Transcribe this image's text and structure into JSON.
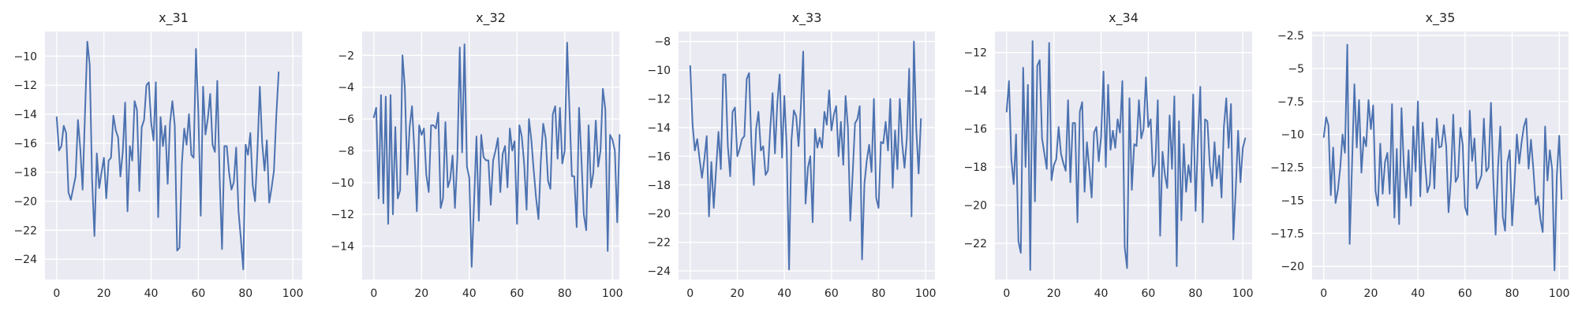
{
  "chart_data": [
    {
      "type": "line",
      "title": "x_31",
      "xlabel": "",
      "ylabel": "",
      "xlim": [
        -4.95,
        103.95
      ],
      "ylim": [
        -25.4,
        -8.3
      ],
      "xticks": [
        0,
        20,
        40,
        60,
        80,
        100
      ],
      "yticks": [
        -24,
        -22,
        -20,
        -18,
        -16,
        -14,
        -12,
        -10
      ],
      "series": [
        {
          "name": "x_31",
          "color": "#4c72b0",
          "values": [
            -14.2,
            -16.5,
            -16.2,
            -14.8,
            -15.3,
            -19.4,
            -19.9,
            -19.1,
            -18.3,
            -14.4,
            -16.4,
            -19.2,
            -14.0,
            -9.0,
            -10.6,
            -18.5,
            -22.4,
            -16.7,
            -19.1,
            -18.0,
            -17.0,
            -19.8,
            -17.2,
            -17.0,
            -14.1,
            -15.1,
            -15.6,
            -18.3,
            -16.6,
            -13.2,
            -20.7,
            -16.2,
            -17.2,
            -13.1,
            -13.7,
            -19.3,
            -14.9,
            -14.4,
            -12.0,
            -11.8,
            -14.6,
            -15.8,
            -11.8,
            -21.1,
            -14.2,
            -16.2,
            -14.8,
            -18.8,
            -14.6,
            -13.1,
            -14.8,
            -23.4,
            -23.2,
            -17.4,
            -15.0,
            -16.1,
            -14.0,
            -16.8,
            -17.0,
            -9.5,
            -13.9,
            -21.0,
            -12.1,
            -15.4,
            -14.3,
            -12.6,
            -16.1,
            -16.6,
            -11.7,
            -18.4,
            -23.3,
            -16.2,
            -16.2,
            -18.0,
            -19.2,
            -18.7,
            -16.3,
            -20.7,
            -22.6,
            -24.7,
            -16.1,
            -16.8,
            -15.3,
            -18.9,
            -20.0,
            -16.5,
            -12.1,
            -16.0,
            -17.9,
            -15.8,
            -20.1,
            -19.1,
            -17.9,
            -14.1,
            -11.1
          ]
        }
      ]
    },
    {
      "type": "line",
      "title": "x_32",
      "xlabel": "",
      "ylabel": "",
      "xlim": [
        -4.9,
        102.9
      ],
      "ylim": [
        -16.1,
        -0.5
      ],
      "xticks": [
        0,
        20,
        40,
        60,
        80,
        100
      ],
      "yticks": [
        -14,
        -12,
        -10,
        -8,
        -6,
        -4,
        -2
      ],
      "series": [
        {
          "name": "x_32",
          "color": "#4c72b0",
          "values": [
            -5.9,
            -5.3,
            -11.0,
            -4.5,
            -11.3,
            -4.6,
            -12.6,
            -4.5,
            -12.0,
            -6.5,
            -11.0,
            -10.5,
            -2.0,
            -4.0,
            -9.5,
            -6.5,
            -5.2,
            -8.0,
            -11.8,
            -6.4,
            -7.0,
            -6.6,
            -9.5,
            -10.6,
            -6.4,
            -6.4,
            -6.6,
            -5.6,
            -11.6,
            -11.0,
            -6.2,
            -10.3,
            -9.8,
            -8.3,
            -11.6,
            -8.4,
            -1.5,
            -8.1,
            -1.3,
            -9.0,
            -9.7,
            -15.3,
            -11.3,
            -7.1,
            -12.4,
            -7.0,
            -8.4,
            -8.6,
            -8.6,
            -11.4,
            -8.6,
            -8.0,
            -7.2,
            -10.6,
            -8.2,
            -7.7,
            -10.3,
            -6.6,
            -8.0,
            -7.4,
            -12.6,
            -6.4,
            -7.1,
            -8.8,
            -11.7,
            -6.0,
            -7.3,
            -9.2,
            -11.0,
            -12.3,
            -8.6,
            -6.3,
            -7.2,
            -9.9,
            -10.4,
            -5.7,
            -5.2,
            -8.5,
            -5.3,
            -8.8,
            -8.0,
            -1.2,
            -5.5,
            -9.6,
            -9.6,
            -12.8,
            -5.3,
            -8.5,
            -12.0,
            -13.0,
            -6.4,
            -10.3,
            -9.4,
            -6.1,
            -9.0,
            -8.0,
            -4.1,
            -5.4,
            -14.3,
            -7.0,
            -7.3,
            -8.0,
            -12.5,
            -7.0
          ]
        }
      ]
    },
    {
      "type": "line",
      "title": "x_33",
      "xlabel": "",
      "ylabel": "",
      "xlim": [
        -4.95,
        103.95
      ],
      "ylim": [
        -24.6,
        -7.3
      ],
      "xticks": [
        0,
        20,
        40,
        60,
        80,
        100
      ],
      "yticks": [
        -24,
        -22,
        -20,
        -18,
        -16,
        -14,
        -12,
        -10,
        -8
      ],
      "series": [
        {
          "name": "x_33",
          "color": "#4c72b0",
          "values": [
            -9.7,
            -13.8,
            -15.6,
            -14.8,
            -16.2,
            -17.5,
            -16.2,
            -14.6,
            -20.2,
            -16.4,
            -19.6,
            -16.9,
            -14.3,
            -16.9,
            -10.3,
            -10.3,
            -15.3,
            -17.4,
            -12.9,
            -12.6,
            -16.0,
            -15.5,
            -14.8,
            -14.6,
            -10.6,
            -10.2,
            -15.2,
            -18.0,
            -14.1,
            -12.9,
            -15.6,
            -15.3,
            -17.3,
            -17.0,
            -14.1,
            -11.6,
            -15.8,
            -12.3,
            -10.3,
            -16.1,
            -11.8,
            -15.4,
            -23.9,
            -14.9,
            -12.8,
            -13.2,
            -15.3,
            -12.6,
            -8.7,
            -19.3,
            -16.8,
            -16.0,
            -20.6,
            -14.1,
            -15.4,
            -14.7,
            -15.4,
            -12.9,
            -13.8,
            -11.4,
            -14.2,
            -13.1,
            -12.5,
            -16.0,
            -13.6,
            -16.6,
            -11.8,
            -14.0,
            -20.5,
            -17.2,
            -13.7,
            -13.4,
            -12.5,
            -23.2,
            -17.9,
            -16.3,
            -15.2,
            -17.1,
            -12.0,
            -18.9,
            -19.6,
            -15.0,
            -15.1,
            -13.6,
            -15.6,
            -12.0,
            -18.2,
            -14.2,
            -16.9,
            -12.0,
            -15.1,
            -16.8,
            -14.8,
            -9.9,
            -20.2,
            -8.0,
            -14.1,
            -17.2,
            -13.4
          ]
        }
      ]
    },
    {
      "type": "line",
      "title": "x_34",
      "xlabel": "",
      "ylabel": "",
      "xlim": [
        -4.95,
        103.95
      ],
      "ylim": [
        -23.9,
        -10.9
      ],
      "xticks": [
        0,
        20,
        40,
        60,
        80,
        100
      ],
      "yticks": [
        -22,
        -20,
        -18,
        -16,
        -14,
        -12
      ],
      "series": [
        {
          "name": "x_34",
          "color": "#4c72b0",
          "values": [
            -15.1,
            -13.5,
            -17.6,
            -18.9,
            -16.3,
            -21.9,
            -22.5,
            -12.8,
            -18.0,
            -13.7,
            -23.4,
            -11.4,
            -19.8,
            -12.7,
            -12.4,
            -16.5,
            -17.3,
            -18.1,
            -11.5,
            -18.7,
            -17.9,
            -17.6,
            -15.9,
            -17.3,
            -17.8,
            -18.2,
            -14.5,
            -18.8,
            -15.7,
            -15.7,
            -20.9,
            -15.1,
            -14.6,
            -19.3,
            -16.7,
            -18.1,
            -19.6,
            -16.2,
            -15.9,
            -17.7,
            -16.4,
            -13.0,
            -18.0,
            -13.7,
            -17.1,
            -16.1,
            -17.0,
            -15.5,
            -16.2,
            -13.5,
            -22.2,
            -23.3,
            -14.4,
            -19.2,
            -16.8,
            -16.9,
            -14.5,
            -16.5,
            -16.0,
            -13.3,
            -15.9,
            -15.5,
            -18.5,
            -17.8,
            -14.5,
            -21.6,
            -17.2,
            -18.4,
            -19.1,
            -15.3,
            -18.1,
            -14.3,
            -23.2,
            -15.6,
            -20.8,
            -16.8,
            -19.3,
            -17.9,
            -18.8,
            -14.2,
            -20.3,
            -16.5,
            -13.8,
            -20.9,
            -15.5,
            -15.6,
            -17.9,
            -19.0,
            -16.7,
            -18.6,
            -17.4,
            -19.6,
            -15.9,
            -14.4,
            -17.0,
            -14.7,
            -21.8,
            -19.2,
            -16.1,
            -18.8,
            -17.0,
            -16.5
          ]
        }
      ]
    },
    {
      "type": "line",
      "title": "x_35",
      "xlabel": "",
      "ylabel": "",
      "xlim": [
        -4.95,
        103.95
      ],
      "ylim": [
        -21.0,
        -2.2
      ],
      "xticks": [
        0,
        20,
        40,
        60,
        80,
        100
      ],
      "yticks": [
        -20.0,
        -17.5,
        -15.0,
        -12.5,
        -10.0,
        -7.5,
        -5.0,
        -2.5
      ],
      "series": [
        {
          "name": "x_35",
          "color": "#4c72b0",
          "values": [
            -10.2,
            -8.7,
            -9.3,
            -14.6,
            -11.0,
            -15.2,
            -14.2,
            -12.5,
            -10.0,
            -11.4,
            -3.2,
            -18.3,
            -12.3,
            -6.2,
            -11.0,
            -7.4,
            -12.9,
            -10.2,
            -10.9,
            -7.4,
            -9.6,
            -7.8,
            -14.3,
            -15.4,
            -10.7,
            -14.5,
            -12.1,
            -11.4,
            -14.5,
            -7.7,
            -16.3,
            -11.1,
            -16.8,
            -8.0,
            -12.3,
            -14.8,
            -11.2,
            -15.4,
            -9.4,
            -12.8,
            -7.5,
            -14.7,
            -9.1,
            -12.1,
            -14.4,
            -13.8,
            -10.3,
            -14.1,
            -8.8,
            -11.0,
            -10.9,
            -9.3,
            -10.9,
            -15.9,
            -13.4,
            -8.5,
            -13.6,
            -13.2,
            -9.5,
            -10.8,
            -15.5,
            -16.1,
            -8.2,
            -12.0,
            -10.3,
            -14.1,
            -13.6,
            -13.1,
            -8.8,
            -12.8,
            -12.5,
            -7.6,
            -13.3,
            -17.6,
            -12.5,
            -9.4,
            -16.2,
            -17.3,
            -12.1,
            -11.2,
            -16.9,
            -13.8,
            -10.0,
            -12.2,
            -10.6,
            -9.4,
            -8.8,
            -12.6,
            -10.4,
            -12.6,
            -15.3,
            -14.7,
            -16.4,
            -17.4,
            -9.4,
            -13.5,
            -11.2,
            -12.7,
            -20.3,
            -13.1,
            -10.1,
            -14.9
          ]
        }
      ]
    }
  ]
}
